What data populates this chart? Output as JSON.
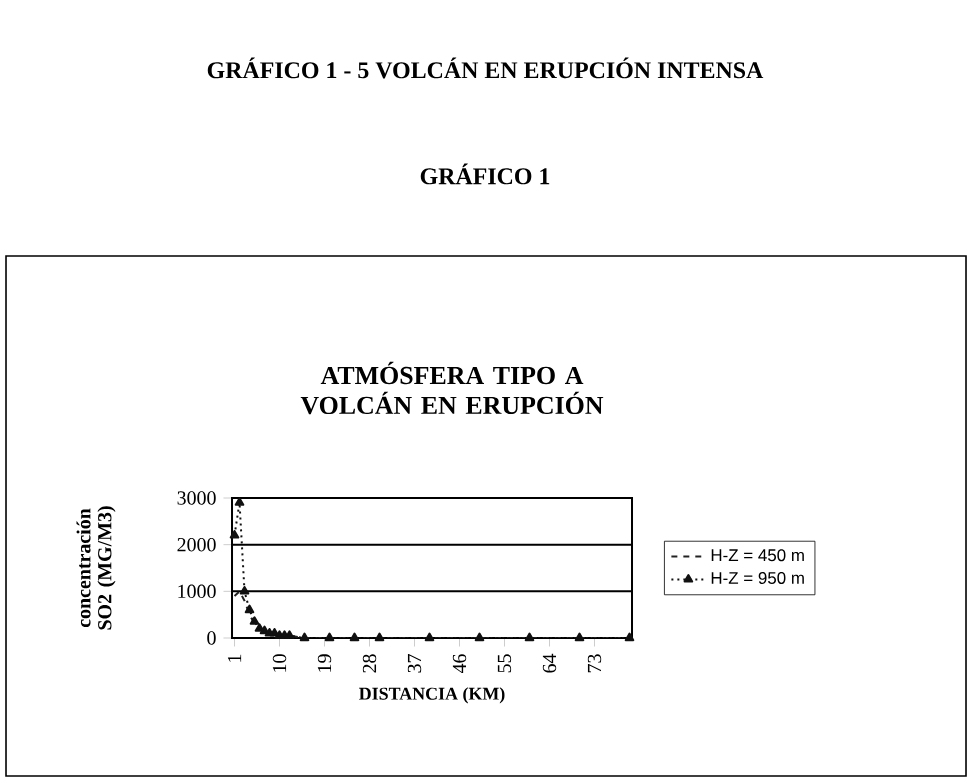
{
  "chart_data": {
    "type": "line",
    "title": "ATMÓSFERA TIPO A VOLCÁN EN ERUPCIÓN",
    "xlabel": "DISTANCIA (KM)",
    "ylabel": "concentración SO2 (MG/M3)",
    "annotations": [
      "GRÁFICO 1 - 5 VOLCÁN EN ERUPCIÓN INTENSA",
      "GRÁFICO 1"
    ],
    "x": [
      1,
      2,
      3,
      4,
      5,
      6,
      7,
      8,
      9,
      10,
      11,
      12,
      15,
      20,
      25,
      30,
      40,
      50,
      60,
      70,
      80
    ],
    "xlim": [
      0.5,
      80.5
    ],
    "xticks": [
      1,
      10,
      19,
      28,
      37,
      46,
      55,
      64,
      73
    ],
    "ylim": [
      0,
      3000
    ],
    "yticks": [
      0,
      1000,
      2000,
      3000
    ],
    "grid": "y",
    "legend": "right",
    "series": [
      {
        "name": "H-Z = 450 m",
        "color": "#222222",
        "line_style": "dashed",
        "marker": "none",
        "values": [
          900,
          1000,
          800,
          500,
          300,
          200,
          150,
          100,
          100,
          50,
          50,
          50,
          0,
          0,
          0,
          0,
          0,
          0,
          0,
          0,
          0
        ]
      },
      {
        "name": "H-Z = 950 m",
        "color": "#111111",
        "line_style": "dotted",
        "marker": "triangle",
        "values": [
          2200,
          2900,
          1000,
          600,
          350,
          200,
          150,
          100,
          100,
          50,
          50,
          50,
          0,
          0,
          0,
          0,
          0,
          0,
          0,
          0,
          0
        ]
      }
    ]
  }
}
